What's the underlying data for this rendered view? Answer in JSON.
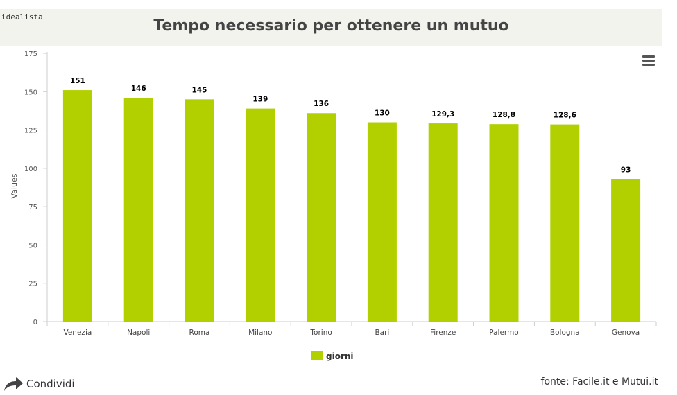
{
  "header": {
    "brand": "idealista",
    "title": "Tempo necessario per ottenere un mutuo"
  },
  "menu": {
    "icon": "hamburger-menu-icon"
  },
  "chart_data": {
    "type": "bar",
    "categories": [
      "Venezia",
      "Napoli",
      "Roma",
      "Milano",
      "Torino",
      "Bari",
      "Firenze",
      "Palermo",
      "Bologna",
      "Genova"
    ],
    "series": [
      {
        "name": "giorni",
        "values": [
          151,
          146,
          145,
          139,
          136,
          130,
          129.3,
          128.8,
          128.6,
          93
        ],
        "color": "#b2d000"
      }
    ],
    "data_labels": [
      "151",
      "146",
      "145",
      "139",
      "136",
      "130",
      "129,3",
      "128,8",
      "128,6",
      "93"
    ],
    "title": "Tempo necessario per ottenere un mutuo",
    "xlabel": "",
    "ylabel": "Values",
    "ylim": [
      0,
      175
    ],
    "yticks": [
      0,
      25,
      50,
      75,
      100,
      125,
      150,
      175
    ],
    "grid": false,
    "legend_position": "bottom-center"
  },
  "footer": {
    "share_label": "Condividi",
    "share_icon": "share-arrow-icon",
    "source": "fonte: Facile.it e Mutui.it"
  }
}
